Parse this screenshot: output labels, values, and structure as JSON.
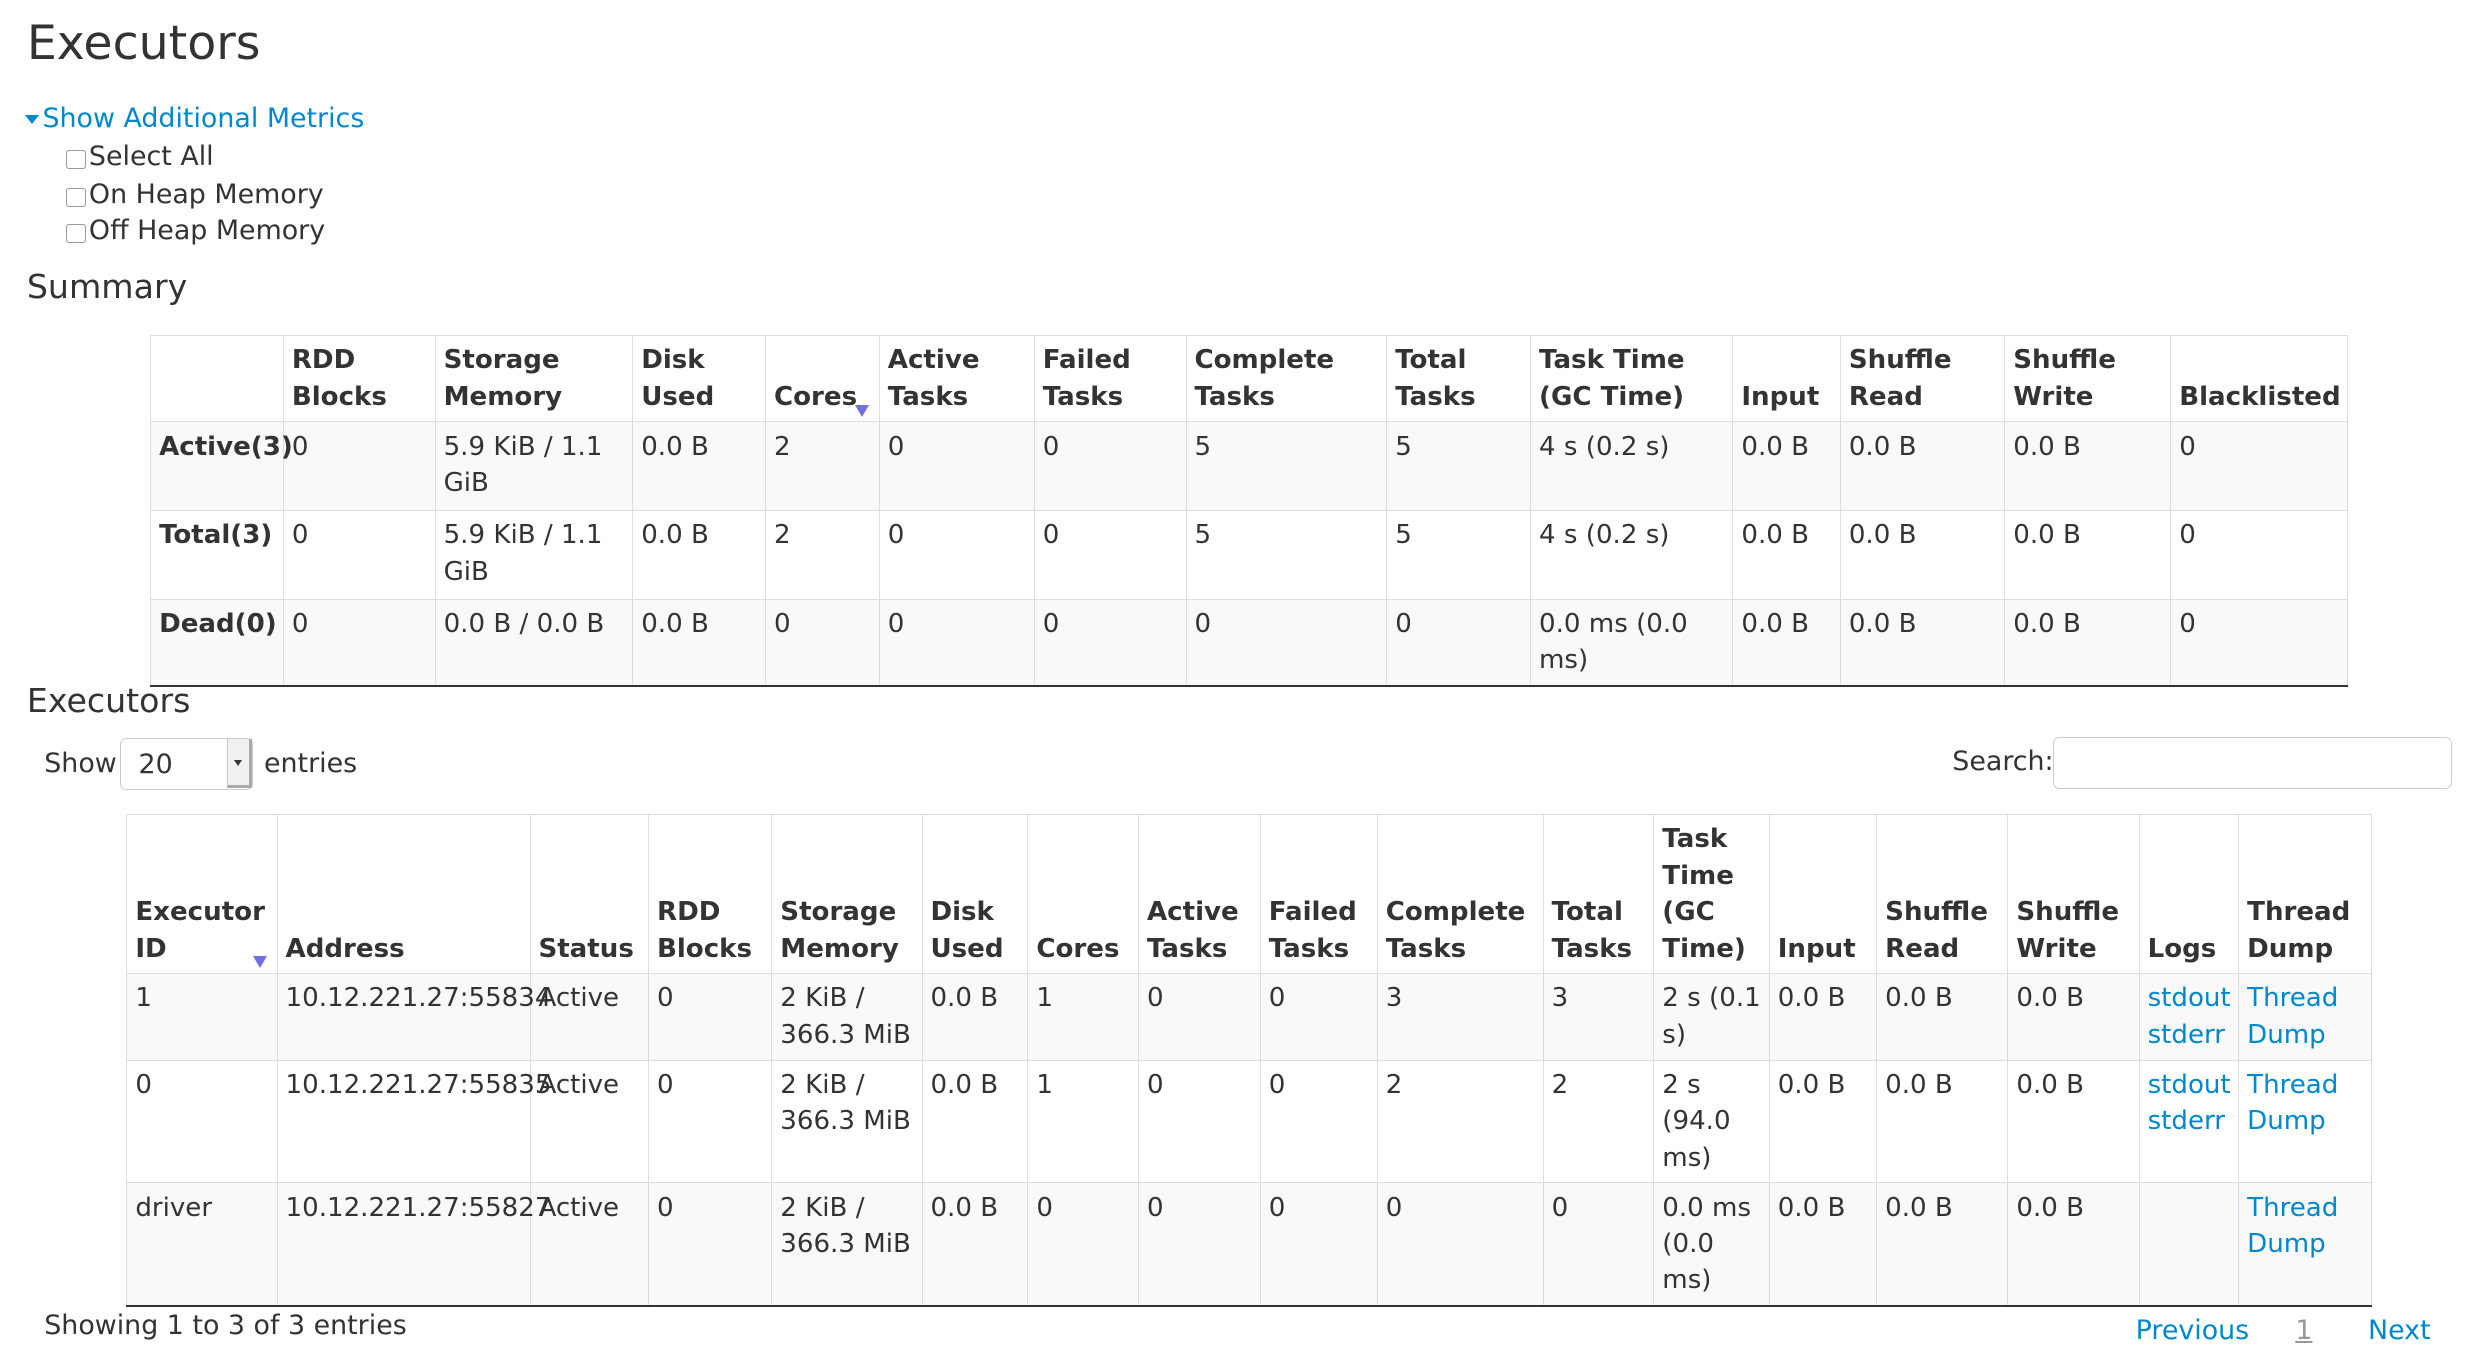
{
  "page_title": "Executors",
  "additional_metrics": {
    "toggle_label": "Show Additional Metrics",
    "options": [
      {
        "label": "Select All",
        "checked": false
      },
      {
        "label": "On Heap Memory",
        "checked": false
      },
      {
        "label": "Off Heap Memory",
        "checked": false
      }
    ]
  },
  "summary": {
    "title": "Summary",
    "columns": [
      "",
      "RDD Blocks",
      "Storage Memory",
      "Disk Used",
      "Cores",
      "Active Tasks",
      "Failed Tasks",
      "Complete Tasks",
      "Total Tasks",
      "Task Time (GC Time)",
      "Input",
      "Shuffle Read",
      "Shuffle Write",
      "Blacklisted"
    ],
    "sorted_column": "Cores",
    "rows": [
      [
        "Active(3)",
        "0",
        "5.9 KiB / 1.1 GiB",
        "0.0 B",
        "2",
        "0",
        "0",
        "5",
        "5",
        "4 s (0.2 s)",
        "0.0 B",
        "0.0 B",
        "0.0 B",
        "0"
      ],
      [
        "Total(3)",
        "0",
        "5.9 KiB / 1.1 GiB",
        "0.0 B",
        "2",
        "0",
        "0",
        "5",
        "5",
        "4 s (0.2 s)",
        "0.0 B",
        "0.0 B",
        "0.0 B",
        "0"
      ],
      [
        "Dead(0)",
        "0",
        "0.0 B / 0.0 B",
        "0.0 B",
        "0",
        "0",
        "0",
        "0",
        "0",
        "0.0 ms (0.0 ms)",
        "0.0 B",
        "0.0 B",
        "0.0 B",
        "0"
      ]
    ]
  },
  "executors": {
    "title": "Executors",
    "show_label": "Show",
    "page_size": "20",
    "entries_label": "entries",
    "search_label": "Search:",
    "search_value": "",
    "columns": [
      "Executor ID",
      "Address",
      "Status",
      "RDD Blocks",
      "Storage Memory",
      "Disk Used",
      "Cores",
      "Active Tasks",
      "Failed Tasks",
      "Complete Tasks",
      "Total Tasks",
      "Task Time (GC Time)",
      "Input",
      "Shuffle Read",
      "Shuffle Write",
      "Logs",
      "Thread Dump"
    ],
    "sorted_column": "Executor ID",
    "rows": [
      {
        "cells": [
          "1",
          "10.12.221.27:55834",
          "Active",
          "0",
          "2 KiB / 366.3 MiB",
          "0.0 B",
          "1",
          "0",
          "0",
          "3",
          "3",
          "2 s (0.1 s)",
          "0.0 B",
          "0.0 B",
          "0.0 B"
        ],
        "logs": [
          "stdout",
          "stderr"
        ],
        "thread_dump": "Thread Dump"
      },
      {
        "cells": [
          "0",
          "10.12.221.27:55835",
          "Active",
          "0",
          "2 KiB / 366.3 MiB",
          "0.0 B",
          "1",
          "0",
          "0",
          "2",
          "2",
          "2 s (94.0 ms)",
          "0.0 B",
          "0.0 B",
          "0.0 B"
        ],
        "logs": [
          "stdout",
          "stderr"
        ],
        "thread_dump": "Thread Dump"
      },
      {
        "cells": [
          "driver",
          "10.12.221.27:55827",
          "Active",
          "0",
          "2 KiB / 366.3 MiB",
          "0.0 B",
          "0",
          "0",
          "0",
          "0",
          "0",
          "0.0 ms (0.0 ms)",
          "0.0 B",
          "0.0 B",
          "0.0 B"
        ],
        "logs": [],
        "thread_dump": "Thread Dump"
      }
    ],
    "info": "Showing 1 to 3 of 3 entries",
    "pagination": {
      "previous": "Previous",
      "current": "1",
      "next": "Next"
    }
  },
  "colors": {
    "link": "#0088cc",
    "sort_arrow": "#7070e0",
    "stripe": "#f9f9f9"
  }
}
